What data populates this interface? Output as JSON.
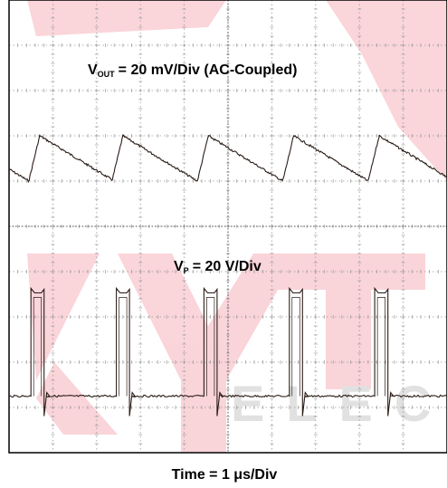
{
  "chart_data": {
    "type": "line",
    "xlabel": "Time = 1 μs/Div",
    "labels": {
      "vout_main": "V",
      "vout_sub": "OUT",
      "vout_rest": "= 20 mV/Div (AC-Coupled)",
      "vp_main": "V",
      "vp_sub": "P",
      "vp_rest": "= 20 V/Div"
    },
    "x_unit": "μs",
    "x_per_div": 1,
    "divisions": {
      "horizontal": 10,
      "vertical": 10
    },
    "grid": true,
    "period_us": 1.95,
    "series": [
      {
        "trace": "vout",
        "volts_per_div": 0.02,
        "coupling": "AC",
        "shape": "sawtooth",
        "peak_times_us": [
          0.7,
          2.6,
          4.55,
          6.5,
          8.45
        ],
        "peak_value_div": 0.5,
        "trough_value_div": -0.5
      },
      {
        "trace": "vp",
        "volts_per_div": 20,
        "shape": "pulse",
        "pulse_start_us": [
          0.5,
          2.45,
          4.45,
          6.4,
          8.35
        ],
        "pulse_width_us": 0.3,
        "high_div": 2.3,
        "low_div": 0
      }
    ],
    "watermark": {
      "text": "KYTE",
      "subtext": "ELECT",
      "color": "#e63e55"
    }
  },
  "colors": {
    "trace": "#2a1d17",
    "grid": "#9a9a9a",
    "frame": "#000000",
    "watermark": "#e63e55"
  }
}
